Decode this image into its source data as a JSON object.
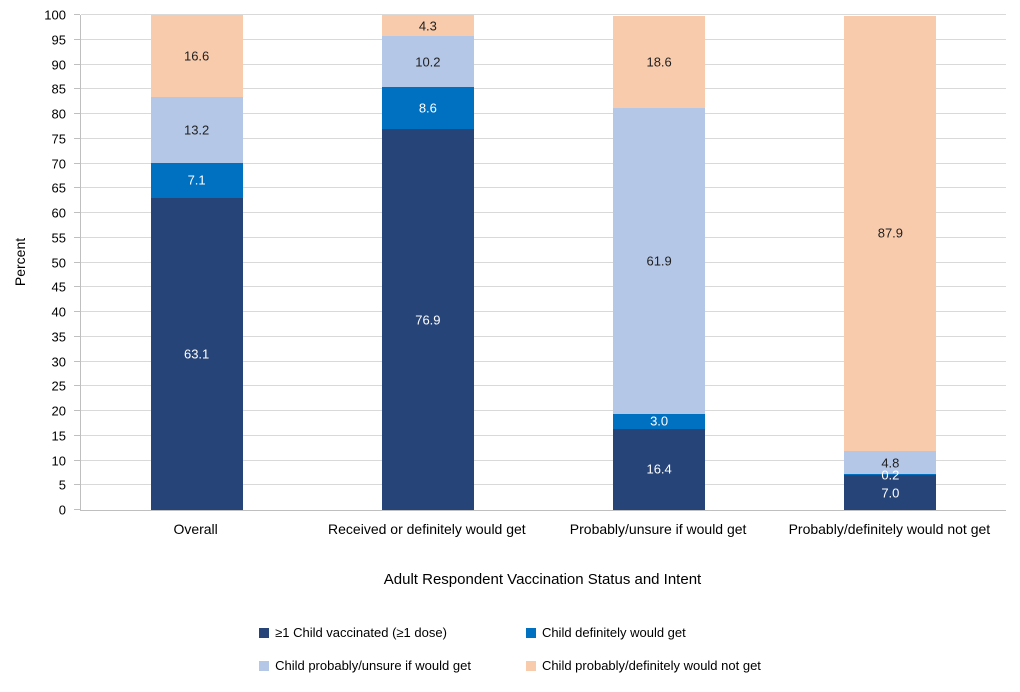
{
  "chart_data": {
    "type": "bar",
    "subtype": "stacked-column",
    "title": "",
    "xlabel": "Adult Respondent Vaccination Status and Intent",
    "ylabel": "Percent",
    "ylim": [
      0,
      100
    ],
    "ytick_step": 5,
    "grid": true,
    "legend_position": "bottom",
    "categories": [
      "Overall",
      "Received or definitely would get",
      "Probably/unsure if would get",
      "Probably/definitely would not get"
    ],
    "series": [
      {
        "name": "≥1 Child vaccinated (≥1 dose)",
        "color": "#264478",
        "label_color": "#FFFFFF",
        "values": [
          63.1,
          76.9,
          16.4,
          7.0
        ]
      },
      {
        "name": "Child definitely would get",
        "color": "#0070C0",
        "label_color": "#FFFFFF",
        "values": [
          7.1,
          8.6,
          3.0,
          0.2
        ]
      },
      {
        "name": "Child probably/unsure if would get",
        "color": "#B4C7E7",
        "label_color": "#1F1F1F",
        "values": [
          13.2,
          10.2,
          61.9,
          4.8
        ]
      },
      {
        "name": "Child probably/definitely would not get",
        "color": "#F8CBAD",
        "label_color": "#1F1F1F",
        "values": [
          16.6,
          4.3,
          18.6,
          87.9
        ]
      }
    ],
    "axis_color": "#BFBFBF",
    "gridline_color": "#D9D9D9"
  }
}
